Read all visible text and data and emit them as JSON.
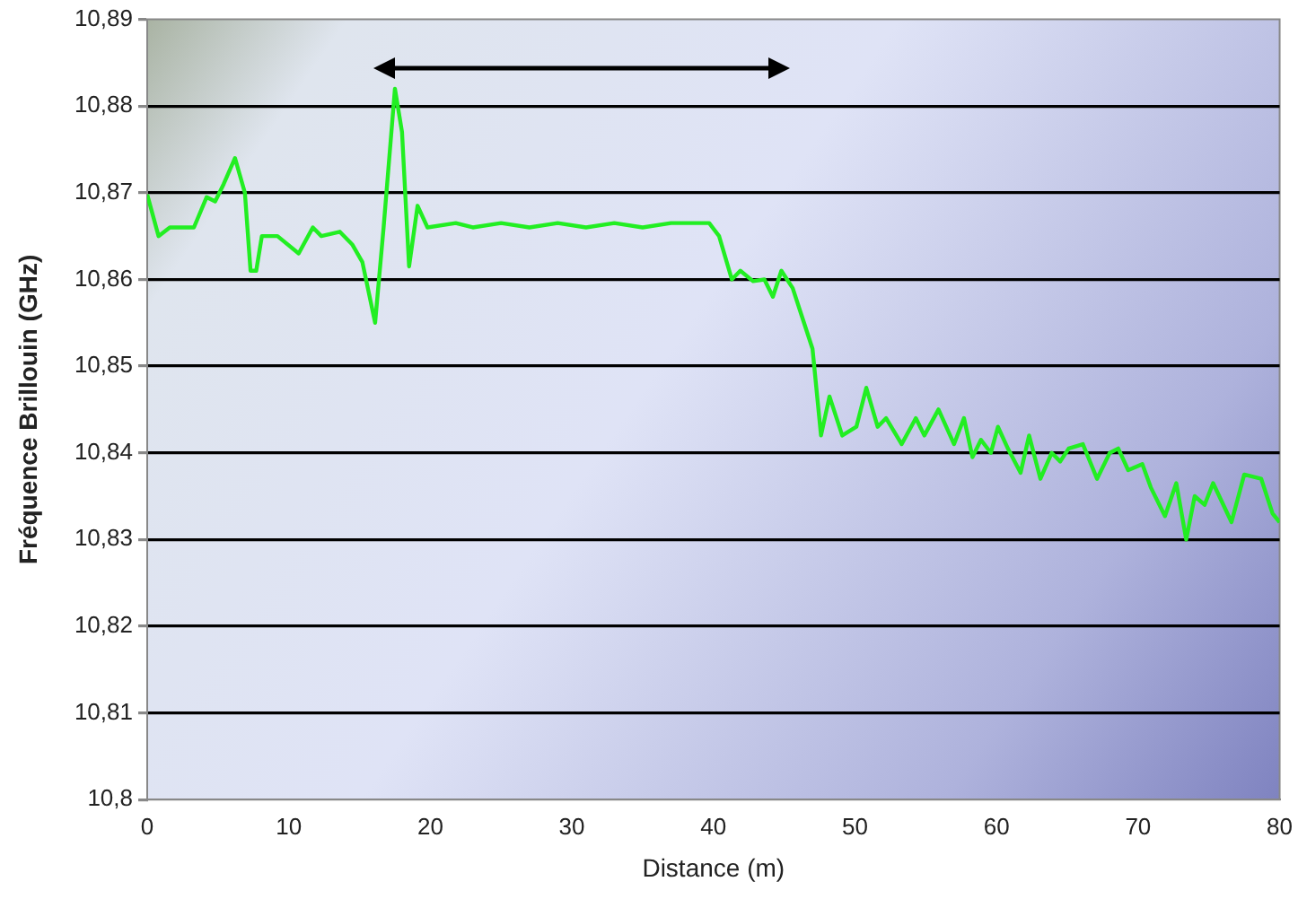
{
  "chart_data": {
    "type": "line",
    "xlabel": "Distance (m)",
    "ylabel": "Fréquence Brillouin (GHz)",
    "xlim": [
      0,
      80
    ],
    "xticks": [
      0,
      10,
      20,
      30,
      40,
      50,
      60,
      70,
      80
    ],
    "ylim": [
      10.8,
      10.89
    ],
    "yticks": [
      {
        "value": 10.8,
        "label": "10,8"
      },
      {
        "value": 10.81,
        "label": "10,81"
      },
      {
        "value": 10.82,
        "label": "10,82"
      },
      {
        "value": 10.83,
        "label": "10,83"
      },
      {
        "value": 10.84,
        "label": "10,84"
      },
      {
        "value": 10.85,
        "label": "10,85"
      },
      {
        "value": 10.86,
        "label": "10,86"
      },
      {
        "value": 10.87,
        "label": "10,87"
      },
      {
        "value": 10.88,
        "label": "10,88"
      },
      {
        "value": 10.89,
        "label": "10,89"
      }
    ],
    "grid": "y",
    "legend": false,
    "marker": "none",
    "line_style": "solid",
    "series": [
      {
        "color": "#22ee22",
        "x": [
          0,
          0.8,
          1.6,
          3.3,
          4.2,
          4.8,
          5.4,
          6.2,
          6.9,
          7.3,
          7.7,
          8.1,
          9.2,
          10.7,
          11.7,
          12.3,
          13.6,
          14.5,
          15.2,
          16.1,
          16.7,
          17.5,
          18,
          18.5,
          19.1,
          19.8,
          21.8,
          23,
          25,
          27,
          29,
          31,
          33,
          35,
          37,
          39.7,
          40.4,
          41.3,
          41.9,
          42.8,
          43.6,
          44.2,
          44.8,
          45.6,
          46.3,
          47,
          47.6,
          48.2,
          49.1,
          50.1,
          50.8,
          51.6,
          52.2,
          53.3,
          54.3,
          54.9,
          55.9,
          57,
          57.7,
          58.3,
          58.9,
          59.6,
          60.1,
          60.8,
          61.7,
          62.3,
          63.1,
          63.9,
          64.5,
          65.1,
          66.1,
          67.1,
          68,
          68.6,
          69.3,
          70.3,
          70.9,
          71.9,
          72.7,
          73.4,
          74,
          74.7,
          75.3,
          76.6,
          77.5,
          78.7,
          79.5,
          80
        ],
        "values": [
          10.8698,
          10.865,
          10.866,
          10.866,
          10.8695,
          10.869,
          10.871,
          10.874,
          10.87,
          10.861,
          10.861,
          10.865,
          10.865,
          10.863,
          10.866,
          10.865,
          10.8655,
          10.864,
          10.862,
          10.855,
          10.866,
          10.882,
          10.877,
          10.8615,
          10.8685,
          10.866,
          10.8665,
          10.866,
          10.8665,
          10.866,
          10.8665,
          10.866,
          10.8665,
          10.866,
          10.8665,
          10.8665,
          10.865,
          10.86,
          10.861,
          10.8598,
          10.86,
          10.858,
          10.861,
          10.859,
          10.8555,
          10.852,
          10.842,
          10.8465,
          10.842,
          10.843,
          10.8475,
          10.843,
          10.844,
          10.841,
          10.844,
          10.842,
          10.845,
          10.841,
          10.844,
          10.8395,
          10.8415,
          10.84,
          10.843,
          10.8405,
          10.8377,
          10.842,
          10.837,
          10.84,
          10.839,
          10.8405,
          10.841,
          10.837,
          10.84,
          10.8405,
          10.838,
          10.8387,
          10.836,
          10.8327,
          10.8365,
          10.83,
          10.835,
          10.834,
          10.8365,
          10.832,
          10.8375,
          10.837,
          10.833,
          10.832
        ]
      }
    ]
  }
}
